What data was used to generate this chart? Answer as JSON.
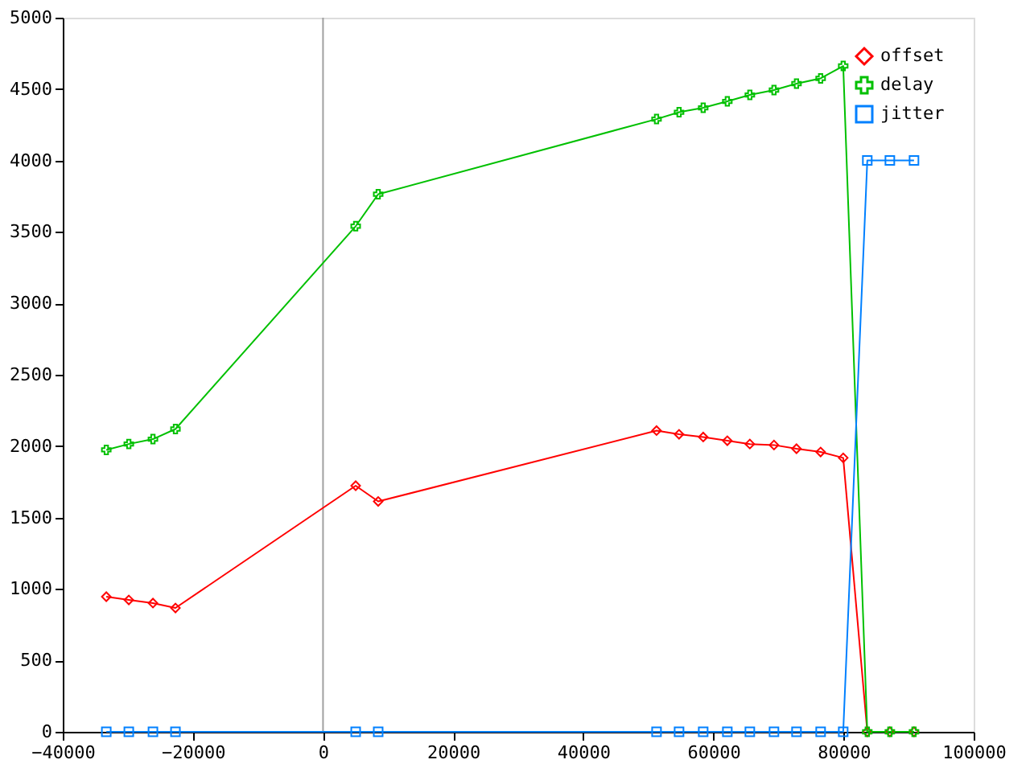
{
  "chart_data": {
    "type": "line",
    "xlim": [
      -40000,
      100000
    ],
    "xticks": [
      -40000,
      -20000,
      0,
      20000,
      40000,
      60000,
      80000,
      100000
    ],
    "ylim": [
      0,
      5000
    ],
    "yticks": [
      0,
      500,
      1000,
      1500,
      2000,
      2500,
      3000,
      3500,
      4000,
      4500,
      5000
    ],
    "grid": false,
    "legend": "top right",
    "ref_lines": [
      {
        "axis": "x",
        "value": 0,
        "color": "#a0a0a0"
      }
    ],
    "series": [
      {
        "name": "offset",
        "color": "#ff0000",
        "marker": "diamond",
        "x": [
          -33310,
          -29850,
          -26140,
          -22680,
          5020,
          8480,
          51260,
          54720,
          58430,
          62140,
          65600,
          69310,
          72770,
          76480,
          79950,
          83650,
          87120,
          90830
        ],
        "values": [
          946,
          923,
          901,
          867,
          1723,
          1613,
          2109,
          2083,
          2064,
          2038,
          2015,
          2008,
          1982,
          1959,
          1918,
          0,
          0,
          0
        ]
      },
      {
        "name": "delay",
        "color": "#00c000",
        "marker": "cross",
        "x": [
          -33310,
          -29850,
          -26140,
          -22680,
          5020,
          8480,
          51260,
          54720,
          58430,
          62140,
          65600,
          69310,
          72770,
          76480,
          79950,
          83650,
          87120,
          90830
        ],
        "values": [
          1974,
          2015,
          2049,
          2120,
          3540,
          3764,
          4290,
          4338,
          4369,
          4414,
          4459,
          4493,
          4538,
          4575,
          4662,
          0,
          0,
          0
        ]
      },
      {
        "name": "jitter",
        "color": "#0080ff",
        "marker": "square",
        "x": [
          -33310,
          -29850,
          -26140,
          -22680,
          5020,
          8480,
          51260,
          54720,
          58430,
          62140,
          65600,
          69310,
          72770,
          76480,
          79950,
          83650,
          87120,
          90830
        ],
        "values": [
          0,
          0,
          0,
          0,
          0,
          0,
          0,
          0,
          0,
          0,
          0,
          0,
          0,
          0,
          0,
          4000,
          4000,
          4000
        ]
      }
    ]
  }
}
